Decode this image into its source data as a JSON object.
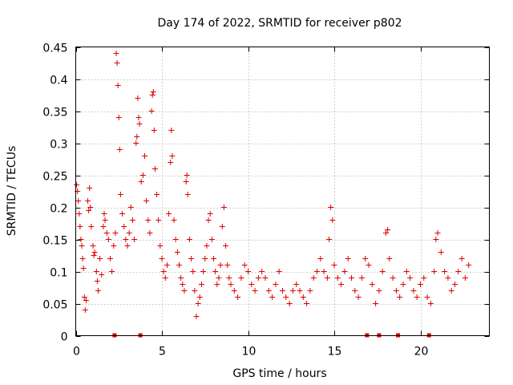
{
  "chart_data": {
    "type": "scatter",
    "title": "Day 174 of 2022, SRMTID for receiver p802",
    "xlabel": "GPS time / hours",
    "ylabel": "SRMTID / TECUs",
    "xlim": [
      0,
      24
    ],
    "ylim": [
      0,
      0.45
    ],
    "xticks": [
      0,
      5,
      10,
      15,
      20
    ],
    "xtick_labels": [
      "0",
      "5",
      "10",
      "15",
      "20"
    ],
    "yticks": [
      0,
      0.05,
      0.1,
      0.15,
      0.2,
      0.25,
      0.3,
      0.35,
      0.4,
      0.45
    ],
    "ytick_labels": [
      "0",
      "0.05",
      "0.1",
      "0.15",
      "0.2",
      "0.25",
      "0.3",
      "0.35",
      "0.4",
      "0.45"
    ],
    "grid": true,
    "marker": "plus",
    "series_color": "#e00000",
    "series": [
      {
        "name": "SRMTID",
        "points": [
          [
            0.05,
            0.235
          ],
          [
            0.1,
            0.225
          ],
          [
            0.15,
            0.21
          ],
          [
            0.2,
            0.19
          ],
          [
            0.25,
            0.17
          ],
          [
            0.3,
            0.15
          ],
          [
            0.35,
            0.14
          ],
          [
            0.4,
            0.12
          ],
          [
            0.45,
            0.105
          ],
          [
            0.5,
            0.06
          ],
          [
            0.55,
            0.04
          ],
          [
            0.6,
            0.055
          ],
          [
            0.7,
            0.21
          ],
          [
            0.75,
            0.195
          ],
          [
            0.8,
            0.23
          ],
          [
            0.85,
            0.2
          ],
          [
            0.9,
            0.17
          ],
          [
            1.0,
            0.14
          ],
          [
            1.05,
            0.125
          ],
          [
            1.1,
            0.13
          ],
          [
            1.2,
            0.1
          ],
          [
            1.25,
            0.085
          ],
          [
            1.3,
            0.07
          ],
          [
            1.4,
            0.12
          ],
          [
            1.5,
            0.095
          ],
          [
            1.6,
            0.17
          ],
          [
            1.65,
            0.19
          ],
          [
            1.7,
            0.18
          ],
          [
            1.8,
            0.16
          ],
          [
            1.9,
            0.15
          ],
          [
            2.0,
            0.12
          ],
          [
            2.1,
            0.1
          ],
          [
            2.2,
            0.14
          ],
          [
            2.3,
            0.16
          ],
          [
            2.35,
            0.44
          ],
          [
            2.4,
            0.425
          ],
          [
            2.45,
            0.39
          ],
          [
            2.5,
            0.34
          ],
          [
            2.55,
            0.29
          ],
          [
            2.6,
            0.22
          ],
          [
            2.7,
            0.19
          ],
          [
            2.8,
            0.17
          ],
          [
            2.9,
            0.15
          ],
          [
            3.0,
            0.14
          ],
          [
            3.1,
            0.16
          ],
          [
            3.2,
            0.2
          ],
          [
            3.3,
            0.18
          ],
          [
            3.4,
            0.15
          ],
          [
            3.5,
            0.3
          ],
          [
            3.55,
            0.31
          ],
          [
            3.6,
            0.37
          ],
          [
            3.65,
            0.34
          ],
          [
            3.7,
            0.33
          ],
          [
            3.8,
            0.24
          ],
          [
            3.9,
            0.25
          ],
          [
            4.0,
            0.28
          ],
          [
            4.1,
            0.21
          ],
          [
            4.2,
            0.18
          ],
          [
            4.3,
            0.16
          ],
          [
            4.4,
            0.35
          ],
          [
            4.45,
            0.375
          ],
          [
            4.5,
            0.38
          ],
          [
            4.55,
            0.32
          ],
          [
            4.6,
            0.26
          ],
          [
            4.7,
            0.22
          ],
          [
            4.8,
            0.18
          ],
          [
            4.9,
            0.14
          ],
          [
            5.0,
            0.12
          ],
          [
            5.1,
            0.1
          ],
          [
            5.2,
            0.09
          ],
          [
            5.3,
            0.11
          ],
          [
            5.4,
            0.19
          ],
          [
            5.5,
            0.27
          ],
          [
            5.55,
            0.32
          ],
          [
            5.6,
            0.28
          ],
          [
            5.7,
            0.18
          ],
          [
            5.8,
            0.15
          ],
          [
            5.9,
            0.13
          ],
          [
            6.0,
            0.11
          ],
          [
            6.1,
            0.09
          ],
          [
            6.2,
            0.08
          ],
          [
            6.3,
            0.07
          ],
          [
            6.4,
            0.24
          ],
          [
            6.45,
            0.25
          ],
          [
            6.5,
            0.22
          ],
          [
            6.6,
            0.15
          ],
          [
            6.7,
            0.12
          ],
          [
            6.8,
            0.1
          ],
          [
            6.9,
            0.07
          ],
          [
            7.0,
            0.03
          ],
          [
            7.1,
            0.05
          ],
          [
            7.2,
            0.06
          ],
          [
            7.3,
            0.08
          ],
          [
            7.4,
            0.1
          ],
          [
            7.5,
            0.12
          ],
          [
            7.6,
            0.14
          ],
          [
            7.7,
            0.18
          ],
          [
            7.8,
            0.19
          ],
          [
            7.9,
            0.15
          ],
          [
            8.0,
            0.12
          ],
          [
            8.1,
            0.1
          ],
          [
            8.2,
            0.08
          ],
          [
            8.3,
            0.09
          ],
          [
            8.4,
            0.11
          ],
          [
            8.5,
            0.17
          ],
          [
            8.6,
            0.2
          ],
          [
            8.7,
            0.14
          ],
          [
            8.8,
            0.11
          ],
          [
            8.9,
            0.09
          ],
          [
            9.0,
            0.08
          ],
          [
            9.2,
            0.07
          ],
          [
            9.4,
            0.06
          ],
          [
            9.6,
            0.09
          ],
          [
            9.8,
            0.11
          ],
          [
            10.0,
            0.1
          ],
          [
            10.2,
            0.08
          ],
          [
            10.4,
            0.07
          ],
          [
            10.6,
            0.09
          ],
          [
            10.8,
            0.1
          ],
          [
            11.0,
            0.09
          ],
          [
            11.2,
            0.07
          ],
          [
            11.4,
            0.06
          ],
          [
            11.6,
            0.08
          ],
          [
            11.8,
            0.1
          ],
          [
            12.0,
            0.07
          ],
          [
            12.2,
            0.06
          ],
          [
            12.4,
            0.05
          ],
          [
            12.6,
            0.07
          ],
          [
            12.8,
            0.08
          ],
          [
            13.0,
            0.07
          ],
          [
            13.2,
            0.06
          ],
          [
            13.4,
            0.05
          ],
          [
            13.6,
            0.07
          ],
          [
            13.8,
            0.09
          ],
          [
            14.0,
            0.1
          ],
          [
            14.2,
            0.12
          ],
          [
            14.4,
            0.1
          ],
          [
            14.6,
            0.09
          ],
          [
            14.7,
            0.15
          ],
          [
            14.8,
            0.2
          ],
          [
            14.9,
            0.18
          ],
          [
            15.0,
            0.11
          ],
          [
            15.2,
            0.09
          ],
          [
            15.4,
            0.08
          ],
          [
            15.6,
            0.1
          ],
          [
            15.8,
            0.12
          ],
          [
            16.0,
            0.09
          ],
          [
            16.2,
            0.07
          ],
          [
            16.4,
            0.06
          ],
          [
            16.6,
            0.09
          ],
          [
            16.8,
            0.12
          ],
          [
            17.0,
            0.11
          ],
          [
            17.2,
            0.08
          ],
          [
            17.4,
            0.05
          ],
          [
            17.6,
            0.07
          ],
          [
            17.8,
            0.1
          ],
          [
            18.0,
            0.16
          ],
          [
            18.1,
            0.165
          ],
          [
            18.2,
            0.12
          ],
          [
            18.4,
            0.09
          ],
          [
            18.6,
            0.07
          ],
          [
            18.8,
            0.06
          ],
          [
            19.0,
            0.08
          ],
          [
            19.2,
            0.1
          ],
          [
            19.4,
            0.09
          ],
          [
            19.6,
            0.07
          ],
          [
            19.8,
            0.06
          ],
          [
            20.0,
            0.08
          ],
          [
            20.2,
            0.09
          ],
          [
            20.4,
            0.06
          ],
          [
            20.6,
            0.05
          ],
          [
            20.8,
            0.1
          ],
          [
            20.9,
            0.15
          ],
          [
            21.0,
            0.16
          ],
          [
            21.2,
            0.13
          ],
          [
            21.4,
            0.1
          ],
          [
            21.6,
            0.09
          ],
          [
            21.8,
            0.07
          ],
          [
            22.0,
            0.08
          ],
          [
            22.2,
            0.1
          ],
          [
            22.4,
            0.12
          ],
          [
            22.6,
            0.09
          ],
          [
            22.8,
            0.11
          ]
        ]
      }
    ],
    "bottom_markers_x": [
      2.25,
      3.75,
      16.9,
      17.6,
      18.7,
      20.5
    ]
  }
}
